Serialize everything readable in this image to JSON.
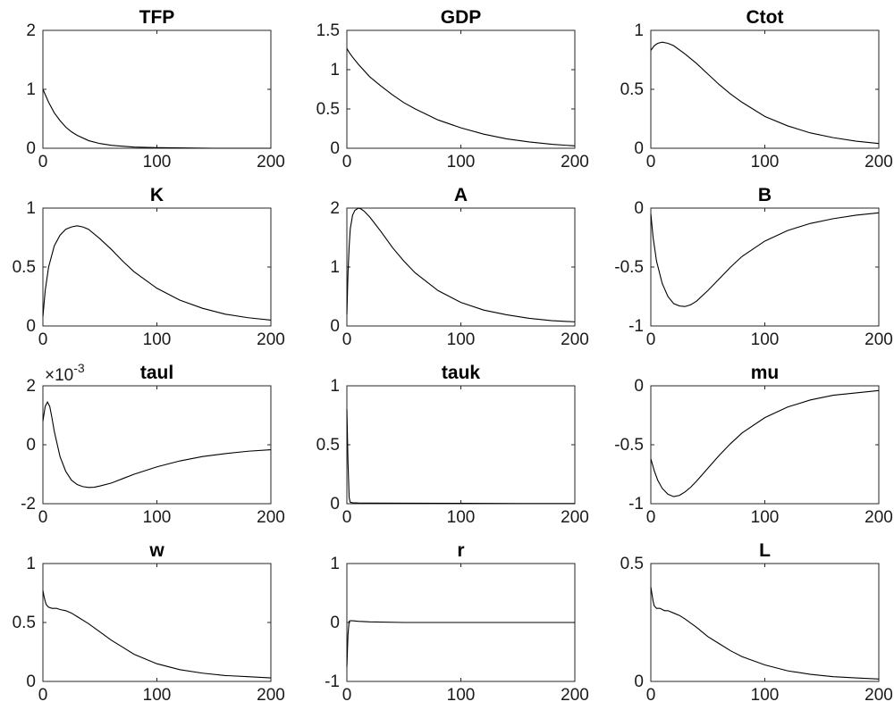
{
  "figure": {
    "background": "#ffffff",
    "line_color": "#000000",
    "axes_color": "#262626"
  },
  "chart_data": [
    {
      "type": "line",
      "title": "TFP",
      "xlim": [
        0,
        200
      ],
      "ylim": [
        0,
        2
      ],
      "xticks": [
        0,
        100,
        200
      ],
      "yticks": [
        0,
        1,
        2
      ],
      "xtick_labels": [
        "0",
        "100",
        "200"
      ],
      "ytick_labels": [
        "0",
        "1",
        "2"
      ],
      "grid": false,
      "x": [
        0,
        5,
        10,
        15,
        20,
        25,
        30,
        40,
        50,
        60,
        80,
        100,
        150,
        200
      ],
      "y": [
        1.0,
        0.78,
        0.6,
        0.47,
        0.36,
        0.28,
        0.22,
        0.13,
        0.08,
        0.05,
        0.02,
        0.01,
        0.0,
        0.0
      ]
    },
    {
      "type": "line",
      "title": "GDP",
      "xlim": [
        0,
        200
      ],
      "ylim": [
        0,
        1.5
      ],
      "xticks": [
        0,
        100,
        200
      ],
      "yticks": [
        0,
        0.5,
        1,
        1.5
      ],
      "xtick_labels": [
        "0",
        "100",
        "200"
      ],
      "ytick_labels": [
        "0",
        "0.5",
        "1",
        "1.5"
      ],
      "grid": false,
      "x": [
        0,
        2,
        5,
        10,
        20,
        30,
        40,
        50,
        60,
        80,
        100,
        120,
        140,
        160,
        180,
        200
      ],
      "y": [
        1.27,
        1.22,
        1.16,
        1.07,
        0.91,
        0.79,
        0.68,
        0.58,
        0.5,
        0.36,
        0.26,
        0.18,
        0.12,
        0.08,
        0.05,
        0.03
      ]
    },
    {
      "type": "line",
      "title": "Ctot",
      "xlim": [
        0,
        200
      ],
      "ylim": [
        0,
        1
      ],
      "xticks": [
        0,
        100,
        200
      ],
      "yticks": [
        0,
        0.5,
        1
      ],
      "xtick_labels": [
        "0",
        "100",
        "200"
      ],
      "ytick_labels": [
        "0",
        "0.5",
        "1"
      ],
      "grid": false,
      "x": [
        0,
        3,
        6,
        10,
        15,
        20,
        30,
        40,
        50,
        60,
        70,
        80,
        100,
        120,
        140,
        160,
        180,
        200
      ],
      "y": [
        0.83,
        0.87,
        0.89,
        0.9,
        0.89,
        0.87,
        0.8,
        0.72,
        0.63,
        0.54,
        0.46,
        0.39,
        0.27,
        0.19,
        0.13,
        0.09,
        0.06,
        0.04
      ]
    },
    {
      "type": "line",
      "title": "K",
      "xlim": [
        0,
        200
      ],
      "ylim": [
        0,
        1
      ],
      "xticks": [
        0,
        100,
        200
      ],
      "yticks": [
        0,
        0.5,
        1
      ],
      "xtick_labels": [
        "0",
        "100",
        "200"
      ],
      "ytick_labels": [
        "0",
        "0.5",
        "1"
      ],
      "grid": false,
      "x": [
        0,
        2,
        5,
        10,
        15,
        20,
        25,
        30,
        35,
        40,
        50,
        60,
        70,
        80,
        100,
        120,
        140,
        160,
        180,
        200
      ],
      "y": [
        0.08,
        0.3,
        0.5,
        0.68,
        0.77,
        0.82,
        0.84,
        0.85,
        0.84,
        0.82,
        0.74,
        0.65,
        0.55,
        0.46,
        0.32,
        0.22,
        0.15,
        0.1,
        0.07,
        0.05
      ]
    },
    {
      "type": "line",
      "title": "A",
      "xlim": [
        0,
        200
      ],
      "ylim": [
        0,
        2
      ],
      "xticks": [
        0,
        100,
        200
      ],
      "yticks": [
        0,
        1,
        2
      ],
      "xtick_labels": [
        "0",
        "100",
        "200"
      ],
      "ytick_labels": [
        "0",
        "1",
        "2"
      ],
      "grid": false,
      "x": [
        0,
        1,
        2,
        3,
        5,
        7,
        10,
        12,
        15,
        20,
        30,
        40,
        50,
        60,
        80,
        100,
        120,
        140,
        160,
        180,
        200
      ],
      "y": [
        0.2,
        0.9,
        1.35,
        1.65,
        1.88,
        1.96,
        2.0,
        1.99,
        1.95,
        1.85,
        1.6,
        1.33,
        1.1,
        0.9,
        0.6,
        0.4,
        0.27,
        0.19,
        0.13,
        0.09,
        0.07
      ]
    },
    {
      "type": "line",
      "title": "B",
      "xlim": [
        0,
        200
      ],
      "ylim": [
        -1,
        0
      ],
      "xticks": [
        0,
        100,
        200
      ],
      "yticks": [
        -1,
        -0.5,
        0
      ],
      "xtick_labels": [
        "0",
        "100",
        "200"
      ],
      "ytick_labels": [
        "-1",
        "-0.5",
        "0"
      ],
      "grid": false,
      "x": [
        0,
        2,
        5,
        10,
        15,
        20,
        25,
        30,
        35,
        40,
        50,
        60,
        70,
        80,
        100,
        120,
        140,
        160,
        180,
        200
      ],
      "y": [
        -0.05,
        -0.25,
        -0.45,
        -0.64,
        -0.75,
        -0.81,
        -0.83,
        -0.835,
        -0.82,
        -0.79,
        -0.7,
        -0.6,
        -0.5,
        -0.41,
        -0.28,
        -0.19,
        -0.13,
        -0.09,
        -0.06,
        -0.04
      ]
    },
    {
      "type": "line",
      "title": "taul",
      "exponent_base": "×10",
      "exponent_power": "-3",
      "xlim": [
        0,
        200
      ],
      "ylim": [
        -2,
        2
      ],
      "xticks": [
        0,
        100,
        200
      ],
      "yticks": [
        -2,
        0,
        2
      ],
      "xtick_labels": [
        "0",
        "100",
        "200"
      ],
      "ytick_labels": [
        "-2",
        "0",
        "2"
      ],
      "grid": false,
      "x": [
        0,
        2,
        4,
        6,
        8,
        10,
        15,
        20,
        25,
        30,
        35,
        40,
        45,
        50,
        60,
        70,
        80,
        100,
        120,
        140,
        160,
        180,
        200
      ],
      "y": [
        0.8,
        1.3,
        1.45,
        1.3,
        0.9,
        0.45,
        -0.4,
        -0.9,
        -1.2,
        -1.35,
        -1.42,
        -1.45,
        -1.44,
        -1.4,
        -1.3,
        -1.15,
        -1.0,
        -0.75,
        -0.55,
        -0.4,
        -0.3,
        -0.22,
        -0.17
      ]
    },
    {
      "type": "line",
      "title": "tauk",
      "xlim": [
        0,
        200
      ],
      "ylim": [
        0,
        1
      ],
      "xticks": [
        0,
        100,
        200
      ],
      "yticks": [
        0,
        0.5,
        1
      ],
      "xtick_labels": [
        "0",
        "100",
        "200"
      ],
      "ytick_labels": [
        "0",
        "0.5",
        "1"
      ],
      "grid": false,
      "x": [
        0,
        1,
        2,
        3,
        5,
        10,
        20,
        50,
        100,
        150,
        200
      ],
      "y": [
        0.8,
        0.35,
        0.05,
        0.012,
        0.008,
        0.006,
        0.005,
        0.004,
        0.003,
        0.002,
        0.002
      ]
    },
    {
      "type": "line",
      "title": "mu",
      "xlim": [
        0,
        200
      ],
      "ylim": [
        -1,
        0
      ],
      "xticks": [
        0,
        100,
        200
      ],
      "yticks": [
        -1,
        -0.5,
        0
      ],
      "xtick_labels": [
        "0",
        "100",
        "200"
      ],
      "ytick_labels": [
        "-1",
        "-0.5",
        "0"
      ],
      "grid": false,
      "x": [
        0,
        3,
        6,
        10,
        15,
        20,
        25,
        30,
        35,
        40,
        50,
        60,
        70,
        80,
        100,
        120,
        140,
        160,
        180,
        200
      ],
      "y": [
        -0.62,
        -0.72,
        -0.8,
        -0.87,
        -0.92,
        -0.94,
        -0.93,
        -0.9,
        -0.86,
        -0.81,
        -0.7,
        -0.59,
        -0.49,
        -0.4,
        -0.27,
        -0.18,
        -0.12,
        -0.08,
        -0.06,
        -0.04
      ]
    },
    {
      "type": "line",
      "title": "w",
      "xlim": [
        0,
        200
      ],
      "ylim": [
        0,
        1
      ],
      "xticks": [
        0,
        100,
        200
      ],
      "yticks": [
        0,
        0.5,
        1
      ],
      "xtick_labels": [
        "0",
        "100",
        "200"
      ],
      "ytick_labels": [
        "0",
        "0.5",
        "1"
      ],
      "grid": false,
      "x": [
        0,
        1,
        2,
        3,
        5,
        8,
        12,
        15,
        20,
        25,
        30,
        40,
        50,
        60,
        70,
        80,
        100,
        120,
        140,
        160,
        180,
        200
      ],
      "y": [
        0.77,
        0.72,
        0.68,
        0.65,
        0.63,
        0.62,
        0.62,
        0.61,
        0.6,
        0.58,
        0.55,
        0.49,
        0.42,
        0.35,
        0.29,
        0.23,
        0.15,
        0.1,
        0.07,
        0.05,
        0.04,
        0.03
      ]
    },
    {
      "type": "line",
      "title": "r",
      "xlim": [
        0,
        200
      ],
      "ylim": [
        -1,
        1
      ],
      "xticks": [
        0,
        100,
        200
      ],
      "yticks": [
        -1,
        0,
        1
      ],
      "xtick_labels": [
        "0",
        "100",
        "200"
      ],
      "ytick_labels": [
        "-1",
        "0",
        "1"
      ],
      "grid": false,
      "x": [
        0,
        1,
        2,
        3,
        5,
        10,
        20,
        50,
        100,
        150,
        200
      ],
      "y": [
        -0.75,
        -0.2,
        0.02,
        0.03,
        0.03,
        0.02,
        0.01,
        0.0,
        0.0,
        0.0,
        0.0
      ]
    },
    {
      "type": "line",
      "title": "L",
      "xlim": [
        0,
        200
      ],
      "ylim": [
        0,
        0.5
      ],
      "xticks": [
        0,
        100,
        200
      ],
      "yticks": [
        0,
        0.5
      ],
      "xtick_labels": [
        "0",
        "100",
        "200"
      ],
      "ytick_labels": [
        "0",
        "0.5"
      ],
      "grid": false,
      "x": [
        0,
        1,
        2,
        3,
        5,
        8,
        12,
        15,
        20,
        25,
        30,
        40,
        50,
        60,
        70,
        80,
        100,
        120,
        140,
        160,
        180,
        200
      ],
      "y": [
        0.4,
        0.37,
        0.34,
        0.32,
        0.31,
        0.31,
        0.3,
        0.3,
        0.29,
        0.28,
        0.265,
        0.23,
        0.19,
        0.16,
        0.13,
        0.105,
        0.07,
        0.045,
        0.03,
        0.02,
        0.015,
        0.01
      ]
    }
  ]
}
